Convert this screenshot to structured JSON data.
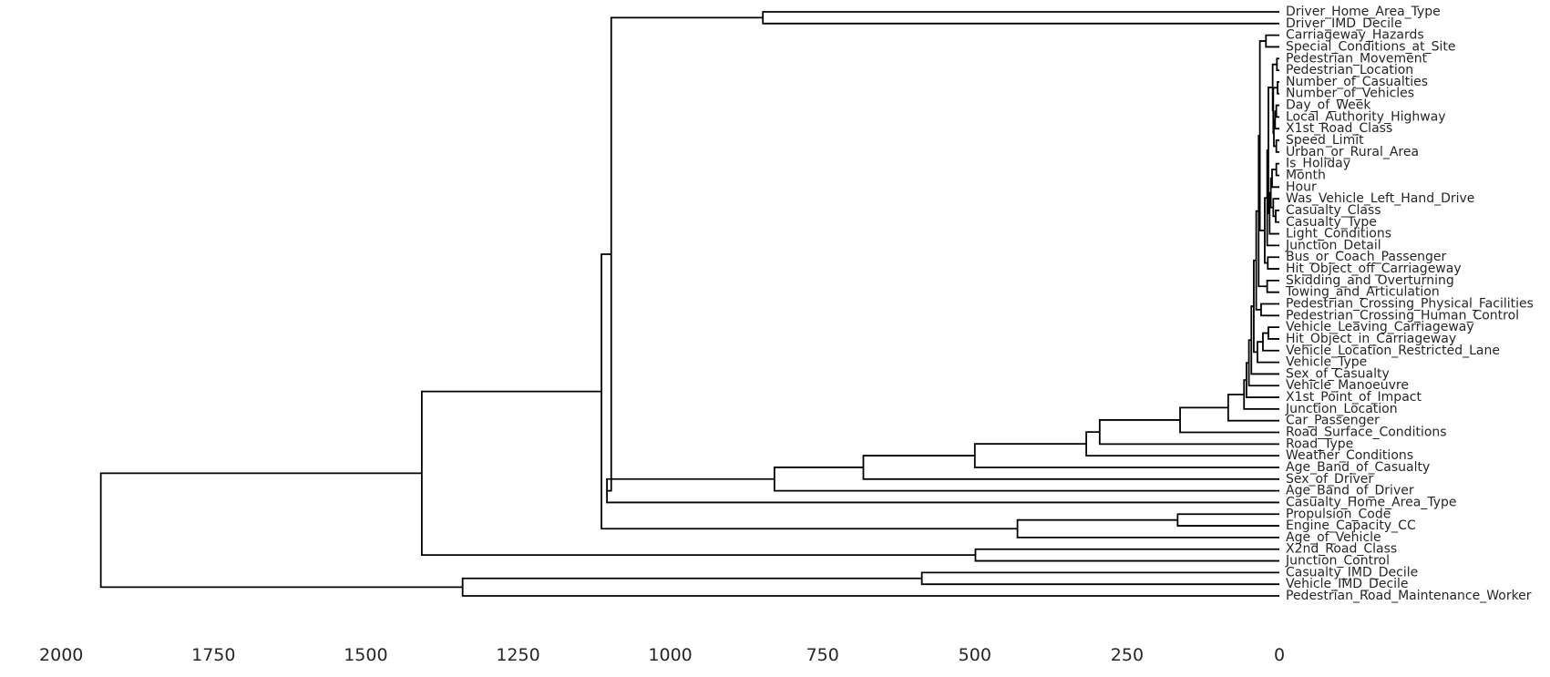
{
  "chart_data": {
    "type": "dendrogram",
    "orientation": "left",
    "title": "",
    "xlabel": "",
    "ylabel": "",
    "xlim": [
      2000,
      0
    ],
    "x_ticks": [
      2000,
      1750,
      1500,
      1250,
      1000,
      750,
      500,
      250,
      0
    ],
    "grid": false,
    "line_color": "#000000",
    "leaves": [
      "Driver_Home_Area_Type",
      "Driver_IMD_Decile",
      "Carriageway_Hazards",
      "Special_Conditions_at_Site",
      "Pedestrian_Movement",
      "Pedestrian_Location",
      "Number_of_Casualties",
      "Number_of_Vehicles",
      "Day_of_Week",
      "Local_Authority_Highway",
      "X1st_Road_Class",
      "Speed_Limit",
      "Urban_or_Rural_Area",
      "Is_Holiday",
      "Month",
      "Hour",
      "Was_Vehicle_Left_Hand_Drive",
      "Casualty_Class",
      "Casualty_Type",
      "Light_Conditions",
      "Junction_Detail",
      "Bus_or_Coach_Passenger",
      "Hit_Object_off_Carriageway",
      "Skidding_and_Overturning",
      "Towing_and_Articulation",
      "Pedestrian_Crossing_Physical_Facilities",
      "Pedestrian_Crossing_Human_Control",
      "Vehicle_Leaving_Carriageway",
      "Hit_Object_in_Carriageway",
      "Vehicle_Location_Restricted_Lane",
      "Vehicle_Type",
      "Sex_of_Casualty",
      "Vehicle_Manoeuvre",
      "X1st_Point_of_Impact",
      "Junction_Location",
      "Car_Passenger",
      "Road_Surface_Conditions",
      "Road_Type",
      "Weather_Conditions",
      "Age_Band_of_Casualty",
      "Sex_of_Driver",
      "Age_Band_of_Driver",
      "Casualty_Home_Area_Type",
      "Propulsion_Code",
      "Engine_Capacity_CC",
      "Age_of_Vehicle",
      "X2nd_Road_Class",
      "Junction_Control",
      "Casualty_IMD_Decile",
      "Vehicle_IMD_Decile",
      "Pedestrian_Road_Maintenance_Worker"
    ],
    "merges": [
      {
        "h": 4,
        "a": "Pedestrian_Movement",
        "b": "Pedestrian_Location"
      },
      {
        "h": 3,
        "a": "Number_of_Casualties",
        "b": "Number_of_Vehicles"
      },
      {
        "h": 5,
        "a": "Day_of_Week",
        "b": "Local_Authority_Highway"
      },
      {
        "h": 7,
        "a": "n2",
        "b": "X1st_Road_Class"
      },
      {
        "h": 5,
        "a": "Speed_Limit",
        "b": "Urban_or_Rural_Area"
      },
      {
        "h": 9,
        "a": "n3",
        "b": "n4"
      },
      {
        "h": 10,
        "a": "n1",
        "b": "n5"
      },
      {
        "h": 11,
        "a": "n0",
        "b": "n6"
      },
      {
        "h": 5,
        "a": "Is_Holiday",
        "b": "Month"
      },
      {
        "h": 12,
        "a": "n8",
        "b": "Hour"
      },
      {
        "h": 6,
        "a": "Casualty_Class",
        "b": "Casualty_Type"
      },
      {
        "h": 10,
        "a": "Was_Vehicle_Left_Hand_Drive",
        "b": "n10"
      },
      {
        "h": 14,
        "a": "n9",
        "b": "n11"
      },
      {
        "h": 16,
        "a": "n12",
        "b": "Light_Conditions"
      },
      {
        "h": 18,
        "a": "n7",
        "b": "n13"
      },
      {
        "h": 20,
        "a": "n14",
        "b": "Junction_Detail"
      },
      {
        "h": 22,
        "a": "Carriageway_Hazards",
        "b": "Special_Conditions_at_Site"
      },
      {
        "h": 19,
        "a": "Bus_or_Coach_Passenger",
        "b": "Hit_Object_off_Carriageway"
      },
      {
        "h": 24,
        "a": "n15",
        "b": "n17"
      },
      {
        "h": 32,
        "a": "n16",
        "b": "n18"
      },
      {
        "h": 20,
        "a": "Skidding_and_Overturning",
        "b": "Towing_and_Articulation"
      },
      {
        "h": 34,
        "a": "n19",
        "b": "n20"
      },
      {
        "h": 30,
        "a": "Pedestrian_Crossing_Physical_Facilities",
        "b": "Pedestrian_Crossing_Human_Control"
      },
      {
        "h": 38,
        "a": "n21",
        "b": "n22"
      },
      {
        "h": 18,
        "a": "Vehicle_Leaving_Carriageway",
        "b": "Hit_Object_in_Carriageway"
      },
      {
        "h": 27,
        "a": "n24",
        "b": "Vehicle_Location_Restricted_Lane"
      },
      {
        "h": 36,
        "a": "n25",
        "b": "Vehicle_Type"
      },
      {
        "h": 42,
        "a": "n23",
        "b": "n26"
      },
      {
        "h": 46,
        "a": "n27",
        "b": "Sex_of_Casualty"
      },
      {
        "h": 50,
        "a": "n28",
        "b": "Vehicle_Manoeuvre"
      },
      {
        "h": 54,
        "a": "n29",
        "b": "X1st_Point_of_Impact"
      },
      {
        "h": 58,
        "a": "n30",
        "b": "Junction_Location"
      },
      {
        "h": 84,
        "a": "n31",
        "b": "Car_Passenger"
      },
      {
        "h": 163,
        "a": "n32",
        "b": "Road_Surface_Conditions"
      },
      {
        "h": 295,
        "a": "n33",
        "b": "Road_Type"
      },
      {
        "h": 317,
        "a": "n34",
        "b": "Weather_Conditions"
      },
      {
        "h": 500,
        "a": "n35",
        "b": "Age_Band_of_Casualty"
      },
      {
        "h": 683,
        "a": "n36",
        "b": "Sex_of_Driver"
      },
      {
        "h": 829,
        "a": "n37",
        "b": "Age_Band_of_Driver"
      },
      {
        "h": 1104,
        "a": "n38",
        "b": "Casualty_Home_Area_Type"
      },
      {
        "h": 848,
        "a": "Driver_Home_Area_Type",
        "b": "Driver_IMD_Decile"
      },
      {
        "h": 1097,
        "a": "n40",
        "b": "n39"
      },
      {
        "h": 167,
        "a": "Propulsion_Code",
        "b": "Engine_Capacity_CC"
      },
      {
        "h": 430,
        "a": "n42",
        "b": "Age_of_Vehicle"
      },
      {
        "h": 1113,
        "a": "n41",
        "b": "n43"
      },
      {
        "h": 499,
        "a": "X2nd_Road_Class",
        "b": "Junction_Control"
      },
      {
        "h": 1408,
        "a": "n44",
        "b": "n45"
      },
      {
        "h": 587,
        "a": "Casualty_IMD_Decile",
        "b": "Vehicle_IMD_Decile"
      },
      {
        "h": 1341,
        "a": "n47",
        "b": "Pedestrian_Road_Maintenance_Worker"
      },
      {
        "h": 1935,
        "a": "n46",
        "b": "n48"
      }
    ]
  }
}
